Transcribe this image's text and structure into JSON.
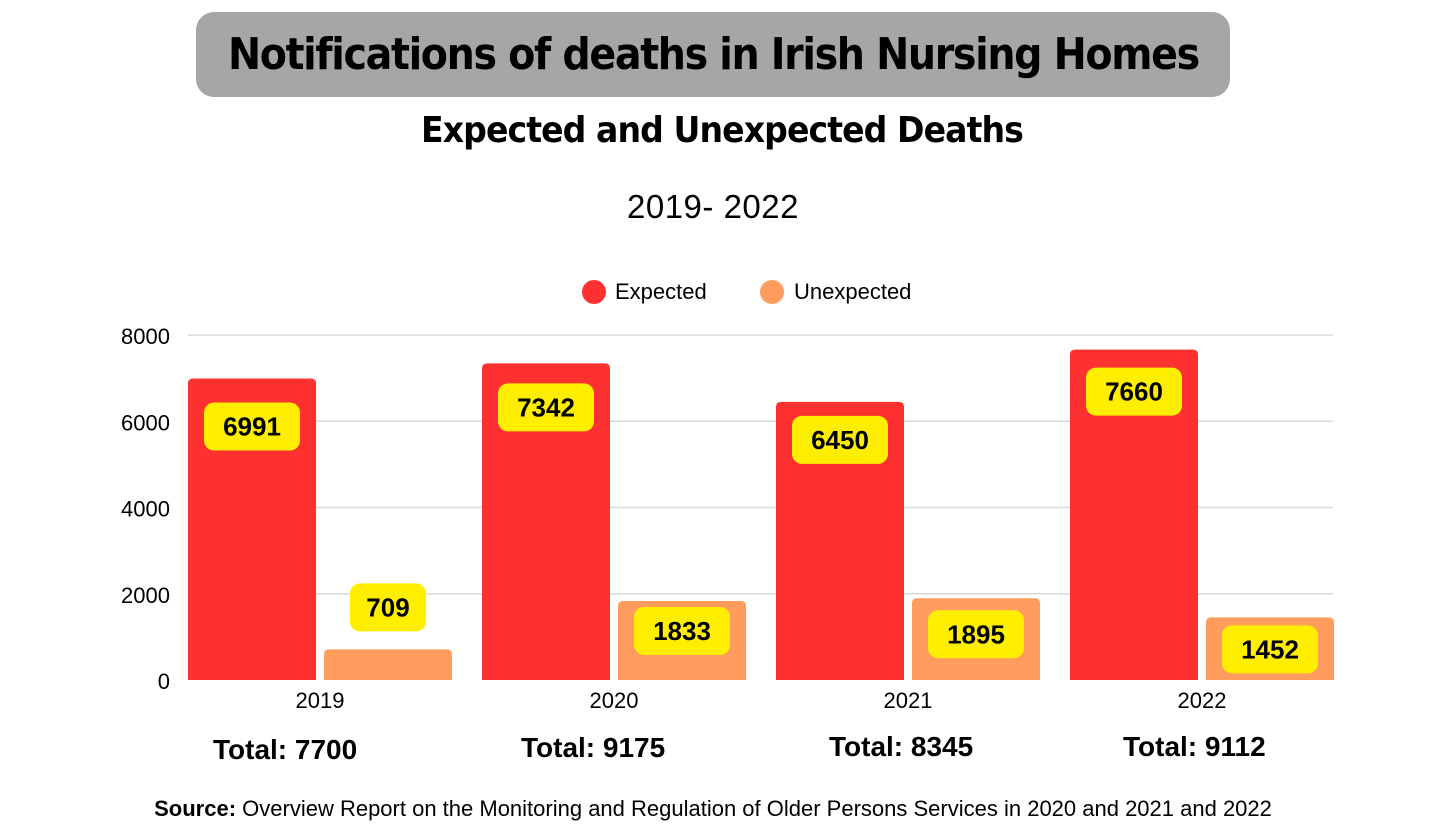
{
  "header": {
    "title": "Notifications of deaths in Irish Nursing Homes",
    "subtitle": "Expected and Unexpected Deaths",
    "period": "2019- 2022"
  },
  "colors": {
    "expected": "#fd3130",
    "unexpected": "#fe9c5e",
    "label_bg": "#ffee00",
    "title_box": "#a6a6a6",
    "grid": "#d9d9d9"
  },
  "chart_data": {
    "type": "bar",
    "categories": [
      "2019",
      "2020",
      "2021",
      "2022"
    ],
    "series": [
      {
        "name": "Expected",
        "values": [
          6991,
          7342,
          6450,
          7660
        ]
      },
      {
        "name": "Unexpected",
        "values": [
          709,
          1833,
          1895,
          1452
        ]
      }
    ],
    "data_labels": [
      [
        "6991",
        "7342",
        "6450",
        "7660"
      ],
      [
        "709",
        "1833",
        "1895",
        "1452"
      ]
    ],
    "yticks": [
      "0",
      "2000",
      "4000",
      "6000",
      "8000"
    ],
    "ylim": [
      0,
      8000
    ],
    "legend": [
      "Expected",
      "Unexpected"
    ],
    "legend_position": "top-center",
    "grid": true,
    "xlabel": "",
    "ylabel": ""
  },
  "totals": [
    "Total: 7700",
    "Total: 9175",
    "Total: 8345",
    "Total: 9112"
  ],
  "source": {
    "label": "Source:",
    "text": " Overview Report on the Monitoring and Regulation of Older Persons Services in 2020 and 2021 and 2022"
  }
}
